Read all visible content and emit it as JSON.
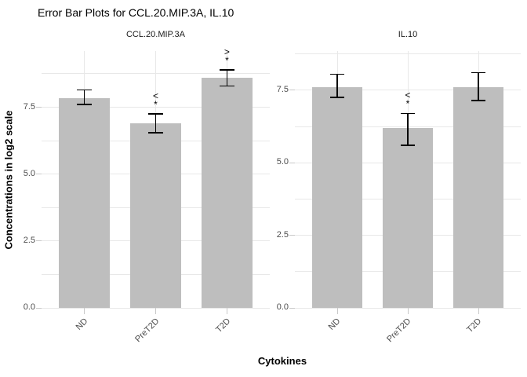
{
  "figure": {
    "title": "Error Bar Plots for CCL.20.MIP.3A, IL.10",
    "x_axis_title": "Cytokines",
    "y_axis_title": "Concentrations in log2 scale"
  },
  "style": {
    "bar_color": "#bebebe",
    "grid_color": "#e8e8e8",
    "tick_color": "#c9c9c9",
    "errorbar_color": "#000000",
    "axis_text_color": "#4d4d4d",
    "annotation_color": "#000000"
  },
  "chart_data": [
    {
      "type": "bar",
      "panel_title": "CCL.20.MIP.3A",
      "xlabel": "Cytokines",
      "ylabel": "Concentrations in log2 scale",
      "categories": [
        "ND",
        "PreT2D",
        "T2D"
      ],
      "values": [
        7.85,
        6.9,
        8.6
      ],
      "error_bars": {
        "low": [
          7.6,
          6.55,
          8.3
        ],
        "high": [
          8.15,
          7.25,
          8.9
        ]
      },
      "annotations": [
        {
          "category": "PreT2D",
          "lines": [
            "<",
            "*"
          ]
        },
        {
          "category": "T2D",
          "lines": [
            ">",
            "*"
          ]
        }
      ],
      "ylim": [
        0,
        9.6
      ],
      "yticks_major": [
        0,
        2.5,
        5,
        7.5
      ],
      "ytick_labels": [
        "0.0",
        "2.5",
        "5.0",
        "7.5"
      ],
      "yticks_minor": [
        1.25,
        3.75,
        6.25,
        8.75
      ],
      "grid": true,
      "legend": "none"
    },
    {
      "type": "bar",
      "panel_title": "IL.10",
      "xlabel": "Cytokines",
      "ylabel": "Concentrations in log2 scale",
      "categories": [
        "ND",
        "PreT2D",
        "T2D"
      ],
      "values": [
        7.6,
        6.2,
        7.6
      ],
      "error_bars": {
        "low": [
          7.25,
          5.6,
          7.15
        ],
        "high": [
          8.05,
          6.7,
          8.1
        ]
      },
      "annotations": [
        {
          "category": "PreT2D",
          "lines": [
            "<",
            "*"
          ]
        }
      ],
      "ylim": [
        0,
        8.85
      ],
      "yticks_major": [
        0,
        2.5,
        5,
        7.5
      ],
      "ytick_labels": [
        "0.0",
        "2.5",
        "5.0",
        "7.5"
      ],
      "yticks_minor": [
        1.25,
        3.75,
        6.25,
        8.75
      ],
      "grid": true,
      "legend": "none"
    }
  ]
}
